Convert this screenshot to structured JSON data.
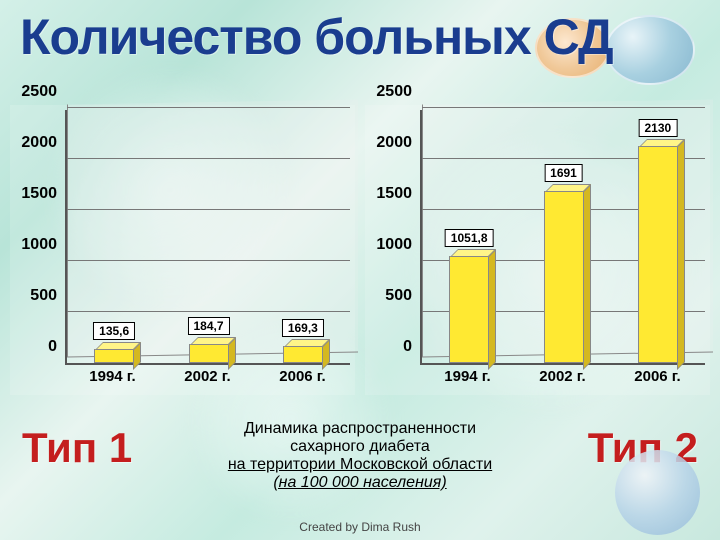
{
  "title": "Количество больных СД",
  "chart_common": {
    "bar_fill": "#ffe932",
    "bar_top": "#fff588",
    "bar_side": "#d4b820",
    "label_border": "#000000",
    "label_bg": "#ffffff",
    "grid_color": "#777777",
    "axis_color": "#555555"
  },
  "chart1": {
    "y_max": 2500,
    "y_ticks": [
      0,
      500,
      1000,
      1500,
      2000,
      2500
    ],
    "categories": [
      "1994 г.",
      "2002 г.",
      "2006 г."
    ],
    "values": [
      135.6,
      184.7,
      169.3
    ],
    "labels": [
      "135,6",
      "184,7",
      "169,3"
    ]
  },
  "chart2": {
    "y_max": 2500,
    "y_ticks": [
      0,
      500,
      1000,
      1500,
      2000,
      2500
    ],
    "categories": [
      "1994 г.",
      "2002 г.",
      "2006 г."
    ],
    "values": [
      1051.8,
      1691,
      2130
    ],
    "labels": [
      "1051,8",
      "1691",
      "2130"
    ]
  },
  "type1_label": "Тип 1",
  "type2_label": "Тип 2",
  "subtitle": {
    "line1": "Динамика распространенности",
    "line2": "сахарного диабета",
    "line3": "на территории Московской области",
    "line4": "(на 100 000 населения)"
  },
  "credit": "Created by Dima Rush"
}
